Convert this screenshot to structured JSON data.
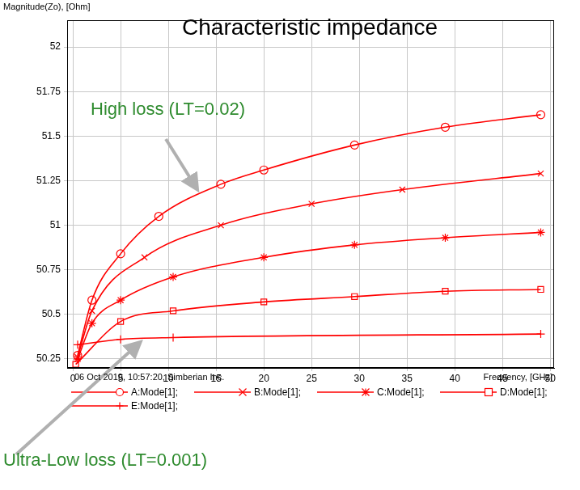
{
  "chart_data": {
    "type": "line",
    "title": "Characteristic impedance",
    "xlabel": "Frequency, [GHz]",
    "ylabel": "Magnitude(Zo), [Ohm]",
    "annotations": [
      {
        "text": "High loss (LT=0.02)",
        "color": "#2e8b2e"
      },
      {
        "text": "Ultra-Low loss (LT=0.001)",
        "color": "#2e8b2e"
      },
      {
        "text": "06 Oct 2019, 10:57:20, Simberian Inc."
      }
    ],
    "xlim": [
      -0.6,
      50.4
    ],
    "xticks": [
      0,
      5,
      10,
      15,
      20,
      25,
      30,
      35,
      40,
      45,
      50
    ],
    "ylim": [
      50.2,
      52.15
    ],
    "yticks": [
      50.25,
      50.5,
      50.75,
      51,
      51.25,
      51.5,
      51.75,
      52
    ],
    "grid": true,
    "legend": "bottom",
    "series": [
      {
        "name": "A:Mode[1];",
        "color": "#ff0000",
        "marker": "circle",
        "x": [
          0.5,
          2,
          5,
          9,
          15.5,
          20,
          29.5,
          39,
          49
        ],
        "values": [
          50.27,
          50.58,
          50.84,
          51.05,
          51.23,
          51.31,
          51.45,
          51.55,
          51.62
        ]
      },
      {
        "name": "B:Mode[1];",
        "color": "#ff0000",
        "marker": "x",
        "x": [
          0.5,
          2,
          7.5,
          15.5,
          25,
          34.5,
          49
        ],
        "values": [
          50.26,
          50.52,
          50.82,
          51.0,
          51.12,
          51.2,
          51.29
        ]
      },
      {
        "name": "C:Mode[1];",
        "color": "#ff0000",
        "marker": "star",
        "x": [
          0.5,
          2,
          5,
          10.5,
          20,
          29.5,
          39,
          49
        ],
        "values": [
          50.25,
          50.45,
          50.58,
          50.71,
          50.82,
          50.89,
          50.93,
          50.96
        ]
      },
      {
        "name": "D:Mode[1];",
        "color": "#ff0000",
        "marker": "square",
        "x": [
          0.3,
          5,
          10.5,
          20,
          29.5,
          39,
          49
        ],
        "values": [
          50.22,
          50.46,
          50.52,
          50.57,
          50.6,
          50.63,
          50.64
        ]
      },
      {
        "name": "E:Mode[1];",
        "color": "#ff0000",
        "marker": "plus",
        "x": [
          0.5,
          5,
          10.5,
          49
        ],
        "values": [
          50.33,
          50.36,
          50.37,
          50.39
        ]
      }
    ]
  }
}
